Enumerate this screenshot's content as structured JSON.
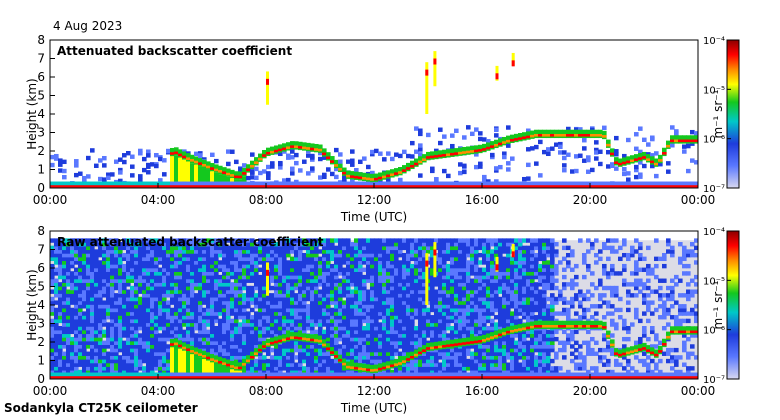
{
  "date": "4 Aug 2023",
  "instrument": "Sodankyla CT25K ceilometer",
  "colors": {
    "background_panel1": "#ffffff",
    "background_panel2": "#dcdce6",
    "colormap": [
      "#d8d8f0",
      "#5a78ff",
      "#1e3cdc",
      "#00c8c8",
      "#14c81e",
      "#ffff00",
      "#ff8c00",
      "#ff0000",
      "#8c0000"
    ]
  },
  "chart_data": [
    {
      "type": "heatmap",
      "title": "Attenuated backscatter coefficient",
      "xlabel": "Time (UTC)",
      "ylabel": "Height (km)",
      "x_ticks": [
        "00:00",
        "04:00",
        "08:00",
        "12:00",
        "16:00",
        "20:00",
        "00:00"
      ],
      "y_ticks": [
        "0",
        "1",
        "2",
        "3",
        "4",
        "5",
        "6",
        "7",
        "8"
      ],
      "xlim_hours": [
        0,
        24
      ],
      "ylim_km": [
        0,
        8
      ],
      "colorbar": {
        "label": "m⁻¹ sr⁻¹",
        "scale": "log",
        "ticks": [
          "10⁻⁷",
          "10⁻⁶",
          "10⁻⁵",
          "10⁻⁴"
        ]
      },
      "main_layer_height_km": [
        [
          0,
          0.25
        ],
        [
          3,
          0.2
        ],
        [
          4.6,
          1.9
        ],
        [
          5,
          1.6
        ],
        [
          6,
          1.0
        ],
        [
          7,
          0.5
        ],
        [
          8,
          1.8
        ],
        [
          9,
          2.2
        ],
        [
          10,
          2.0
        ],
        [
          11,
          0.6
        ],
        [
          12,
          0.4
        ],
        [
          13,
          0.8
        ],
        [
          14,
          1.6
        ],
        [
          15,
          1.8
        ],
        [
          16,
          2.0
        ],
        [
          17,
          2.5
        ],
        [
          18,
          2.8
        ],
        [
          19,
          2.8
        ],
        [
          20.5,
          2.8
        ],
        [
          21,
          1.2
        ],
        [
          22,
          1.6
        ],
        [
          22.5,
          1.2
        ],
        [
          23,
          2.5
        ],
        [
          24,
          2.5
        ]
      ]
    },
    {
      "type": "heatmap",
      "title": "Raw attenuated backscatter coefficient",
      "xlabel": "Time (UTC)",
      "ylabel": "Height (km)",
      "x_ticks": [
        "00:00",
        "04:00",
        "08:00",
        "12:00",
        "16:00",
        "20:00",
        "00:00"
      ],
      "y_ticks": [
        "0",
        "1",
        "2",
        "3",
        "4",
        "5",
        "6",
        "7",
        "8"
      ],
      "xlim_hours": [
        0,
        24
      ],
      "ylim_km": [
        0,
        8
      ],
      "colorbar": {
        "label": "m⁻¹ sr⁻¹",
        "scale": "log",
        "ticks": [
          "10⁻⁷",
          "10⁻⁶",
          "10⁻⁵",
          "10⁻⁴"
        ]
      },
      "main_layer_height_km": [
        [
          0,
          0.25
        ],
        [
          3,
          0.2
        ],
        [
          4.6,
          1.9
        ],
        [
          5,
          1.6
        ],
        [
          6,
          1.0
        ],
        [
          7,
          0.5
        ],
        [
          8,
          1.8
        ],
        [
          9,
          2.2
        ],
        [
          10,
          2.0
        ],
        [
          11,
          0.6
        ],
        [
          12,
          0.4
        ],
        [
          13,
          0.8
        ],
        [
          14,
          1.6
        ],
        [
          15,
          1.8
        ],
        [
          16,
          2.0
        ],
        [
          17,
          2.5
        ],
        [
          18,
          2.8
        ],
        [
          19,
          2.8
        ],
        [
          20.5,
          2.8
        ],
        [
          21,
          1.2
        ],
        [
          22,
          1.6
        ],
        [
          22.5,
          1.2
        ],
        [
          23,
          2.5
        ],
        [
          24,
          2.5
        ]
      ]
    }
  ]
}
